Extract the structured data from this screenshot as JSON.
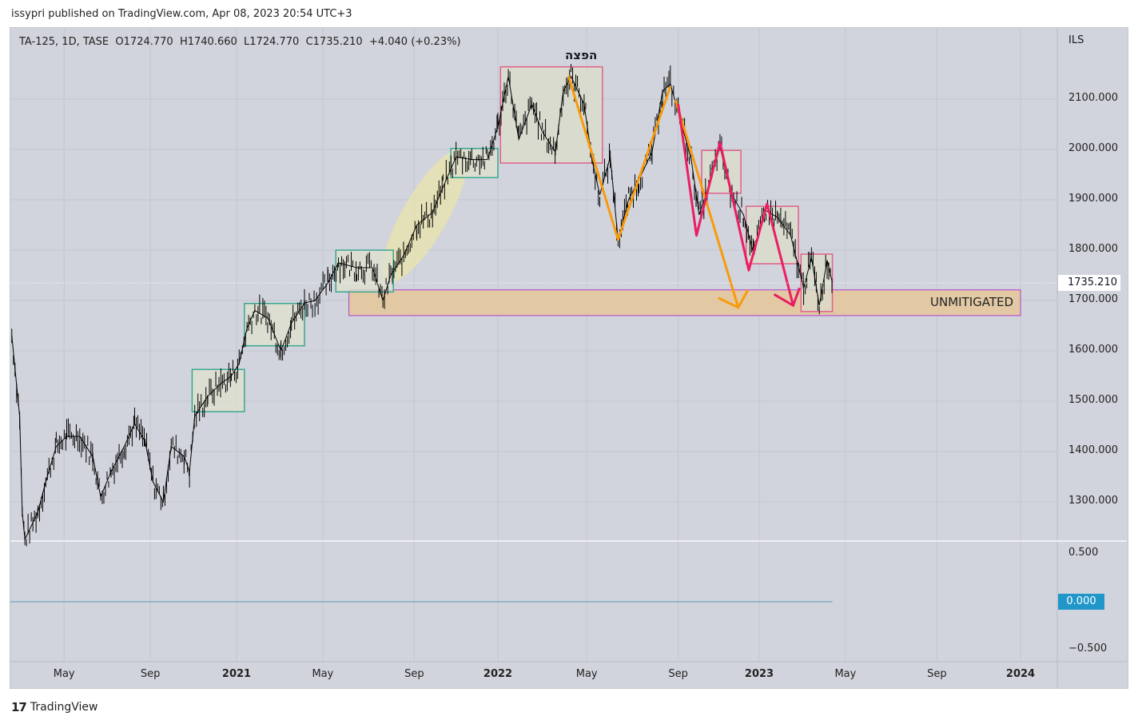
{
  "header": {
    "published": "issypri published on TradingView.com, Apr 08, 2023 20:54 UTC+3"
  },
  "legend": {
    "symbol": "TA-125, 1D, TASE",
    "open": "O1724.770",
    "high": "H1740.660",
    "low": "L1724.770",
    "close": "C1735.210",
    "change": "+4.040 (+0.23%)"
  },
  "footer": {
    "brand": "TradingView"
  },
  "colors": {
    "background": "#d1d4dc",
    "green_box": "#3aa78f",
    "pink_box": "#e0608a",
    "orange": "#f89a0b",
    "pink": "#e91e63",
    "zone_fill": "#e2c9a4",
    "zone_border": "#b03ccf",
    "zero_line": "#2196c9"
  },
  "chart_data": {
    "type": "line",
    "title": "TA-125, 1D, TASE",
    "currency": "ILS",
    "last_price_label": "1735.210",
    "ylim": [
      1207,
      2216
    ],
    "xlim": [
      2020.09,
      2024.12
    ],
    "y_ticks": [
      "2100.000",
      "2000.000",
      "1900.000",
      "1800.000",
      "1700.000",
      "1600.000",
      "1500.000",
      "1400.000",
      "1300.000"
    ],
    "y_tick_values": [
      2100,
      2000,
      1900,
      1800,
      1700,
      1600,
      1500,
      1400,
      1300
    ],
    "x_ticks": [
      {
        "label": "May",
        "t": 2020.34,
        "bold": false
      },
      {
        "label": "Sep",
        "t": 2020.67,
        "bold": false
      },
      {
        "label": "2021",
        "t": 2021.0,
        "bold": true
      },
      {
        "label": "May",
        "t": 2021.33,
        "bold": false
      },
      {
        "label": "Sep",
        "t": 2021.68,
        "bold": false
      },
      {
        "label": "2022",
        "t": 2022.0,
        "bold": true
      },
      {
        "label": "May",
        "t": 2022.34,
        "bold": false
      },
      {
        "label": "Sep",
        "t": 2022.69,
        "bold": false
      },
      {
        "label": "2023",
        "t": 2023.0,
        "bold": true
      },
      {
        "label": "May",
        "t": 2023.33,
        "bold": false
      },
      {
        "label": "Sep",
        "t": 2023.68,
        "bold": false
      },
      {
        "label": "2024",
        "t": 2024.0,
        "bold": true
      }
    ],
    "series": [
      {
        "name": "TA-125",
        "t": [
          2020.14,
          2020.17,
          2020.18,
          2020.19,
          2020.24,
          2020.27,
          2020.31,
          2020.35,
          2020.4,
          2020.45,
          2020.48,
          2020.52,
          2020.57,
          2020.61,
          2020.65,
          2020.68,
          2020.72,
          2020.75,
          2020.8,
          2020.82,
          2020.84,
          2020.89,
          2020.94,
          2020.98,
          2021.01,
          2021.04,
          2021.07,
          2021.12,
          2021.17,
          2021.21,
          2021.26,
          2021.3,
          2021.35,
          2021.39,
          2021.46,
          2021.52,
          2021.56,
          2021.59,
          2021.64,
          2021.69,
          2021.75,
          2021.79,
          2021.84,
          2021.9,
          2021.96,
          2022.0,
          2022.04,
          2022.08,
          2022.13,
          2022.17,
          2022.22,
          2022.25,
          2022.28,
          2022.33,
          2022.36,
          2022.39,
          2022.43,
          2022.46,
          2022.5,
          2022.54,
          2022.59,
          2022.63,
          2022.66,
          2022.69,
          2022.74,
          2022.77,
          2022.82,
          2022.85,
          2022.89,
          2022.94,
          2022.98,
          2023.02,
          2023.07,
          2023.12,
          2023.17,
          2023.2,
          2023.23,
          2023.26,
          2023.28
        ],
        "values": [
          1630,
          1470,
          1280,
          1225,
          1280,
          1340,
          1410,
          1430,
          1430,
          1390,
          1310,
          1360,
          1410,
          1455,
          1420,
          1340,
          1300,
          1410,
          1390,
          1360,
          1470,
          1510,
          1535,
          1550,
          1575,
          1645,
          1680,
          1665,
          1600,
          1655,
          1695,
          1700,
          1735,
          1775,
          1765,
          1765,
          1700,
          1750,
          1790,
          1850,
          1875,
          1925,
          1985,
          1980,
          1980,
          2045,
          2145,
          2020,
          2090,
          2035,
          1995,
          2115,
          2145,
          2090,
          1980,
          1910,
          1985,
          1820,
          1900,
          1940,
          1995,
          2115,
          2130,
          2075,
          1980,
          1870,
          1950,
          2005,
          1915,
          1870,
          1790,
          1880,
          1865,
          1830,
          1725,
          1785,
          1690,
          1780,
          1735
        ]
      }
    ],
    "annotations": {
      "distribution_label": "הפצה",
      "zone_label": "UNMITIGATED",
      "green_boxes": [
        [
          2020.83,
          2021.03,
          1563,
          1479
        ],
        [
          2021.03,
          2021.26,
          1694,
          1610
        ],
        [
          2021.38,
          2021.6,
          1800,
          1717
        ],
        [
          2021.82,
          2022.0,
          2002,
          1944
        ]
      ],
      "pink_boxes": [
        [
          2022.01,
          2022.4,
          2164,
          1973
        ],
        [
          2022.78,
          2022.93,
          1998,
          1913
        ],
        [
          2022.95,
          2023.15,
          1887,
          1773
        ],
        [
          2023.16,
          2023.28,
          1792,
          1678
        ]
      ],
      "zone": [
        2021.43,
        2024.0,
        1721,
        1670
      ],
      "highlight_center": [
        2021.72,
        1868
      ],
      "orange_paths": [
        [
          [
            2022.27,
            2146
          ],
          [
            2022.46,
            1821
          ],
          [
            2022.66,
            2125
          ]
        ],
        [
          [
            2022.68,
            2098
          ],
          [
            2022.92,
            1686
          ]
        ]
      ],
      "pink_path": [
        [
          2022.69,
          2090
        ],
        [
          2022.76,
          1829
        ],
        [
          2022.85,
          2014
        ],
        [
          2022.96,
          1760
        ],
        [
          2023.03,
          1892
        ],
        [
          2023.13,
          1690
        ]
      ]
    },
    "indicator": {
      "y_ticks": [
        "0.500",
        "0.000",
        "−0.500"
      ],
      "y_tick_values": [
        0.5,
        0,
        -0.5
      ],
      "zero_label": "0.000",
      "value": 0
    }
  }
}
